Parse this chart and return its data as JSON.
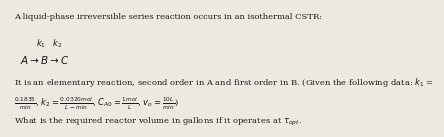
{
  "line1": "A liquid-phase irreversible series reaction occurs in an isothermal CSTR:",
  "k_labels": "$k_1 \\quad k_2$",
  "reaction": "$A \\rightarrow B \\rightarrow C$",
  "line3a": "It is an elementary reaction, second order in A and first order in B. (Given the following data: $k_1$ =",
  "line3b": "$\\frac{0.1835}{min}$, $k_2 = \\frac{0.0320mol}{L-min}$, $C_{A0} = \\frac{1mol}{L}$, $v_o = \\frac{10L}{min}$)",
  "line4": "What is the required reactor volume in gallons if it operates at $\\tau_{opt}$.",
  "bg_color": "#ece9e2",
  "text_color": "#1a1a1a",
  "fs": 6.0,
  "fs_reaction": 7.5
}
